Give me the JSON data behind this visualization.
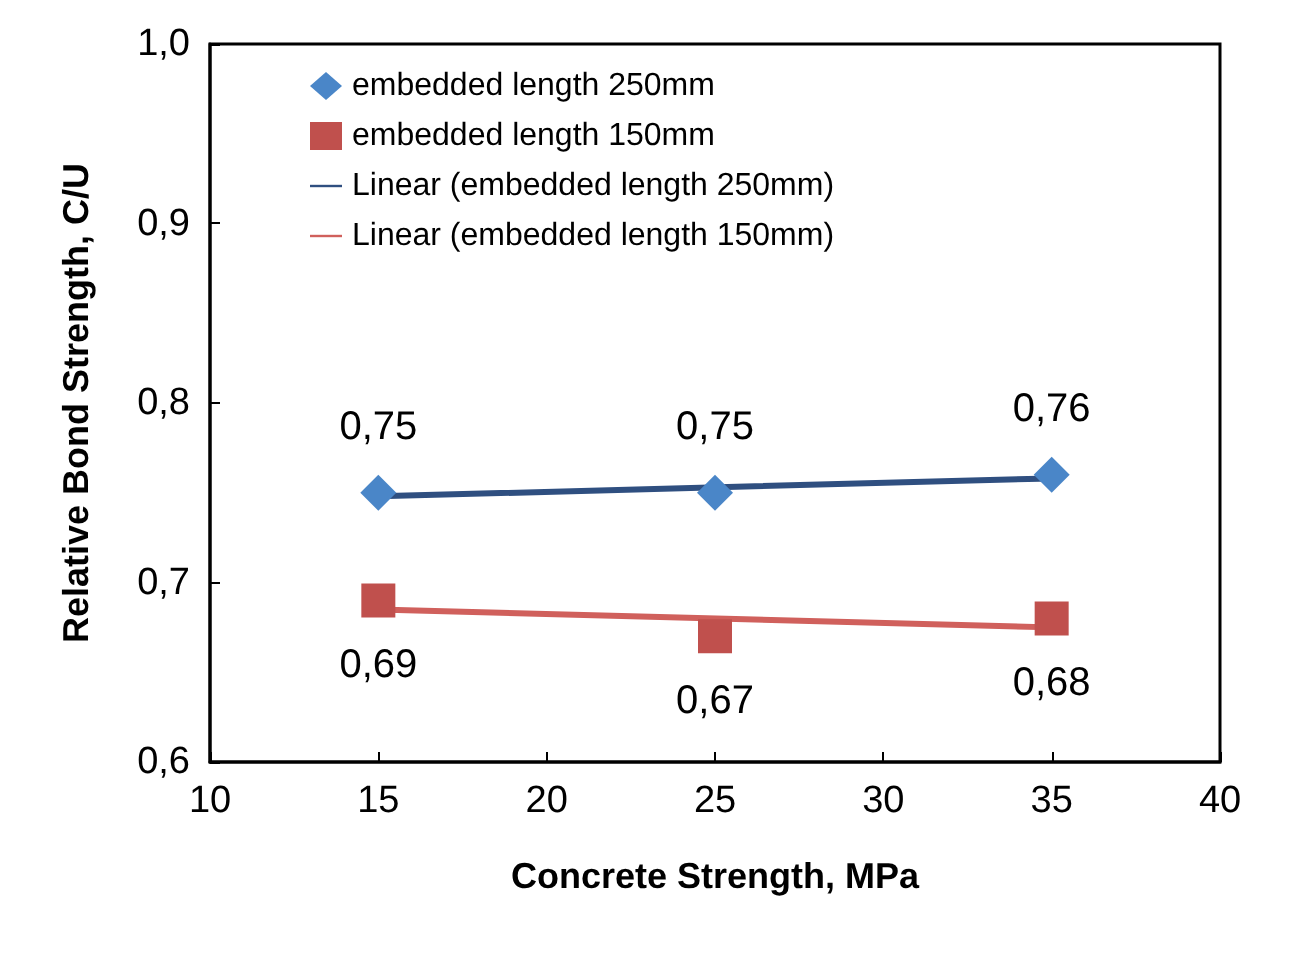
{
  "chart_data": {
    "type": "scatter",
    "xlabel": "Concrete Strength, MPa",
    "ylabel": "Relative Bond Strength, C/U",
    "xlim": [
      10,
      40
    ],
    "xticks": [
      10,
      15,
      20,
      25,
      30,
      35,
      40
    ],
    "ylim": [
      0.6,
      1.0
    ],
    "yticks": [
      {
        "value": 0.6,
        "label": "0,6"
      },
      {
        "value": 0.7,
        "label": "0,7"
      },
      {
        "value": 0.8,
        "label": "0,8"
      },
      {
        "value": 0.9,
        "label": "0,9"
      },
      {
        "value": 1.0,
        "label": "1,0"
      }
    ],
    "grid": false,
    "legend": "top",
    "series": [
      {
        "name": "embedded length 250mm",
        "marker": "diamond",
        "color": "#4a86c8",
        "x": [
          15,
          25,
          35
        ],
        "values": [
          0.75,
          0.75,
          0.76
        ],
        "value_labels": [
          "0,75",
          "0,75",
          "0,76"
        ]
      },
      {
        "name": "embedded length 150mm",
        "marker": "square",
        "color": "#c0504d",
        "x": [
          15,
          25,
          35
        ],
        "values": [
          0.69,
          0.67,
          0.68
        ],
        "value_labels": [
          "0,69",
          "0,67",
          "0,68"
        ]
      },
      {
        "name": "Linear (embedded length 250mm)",
        "type": "line",
        "marker": "none",
        "line_style": "solid",
        "color": "#2f4f80",
        "x": [
          15,
          35
        ],
        "values": [
          0.748,
          0.758
        ]
      },
      {
        "name": "Linear (embedded length 150mm)",
        "type": "line",
        "marker": "none",
        "line_style": "solid",
        "color": "#d0605c",
        "x": [
          15,
          35
        ],
        "values": [
          0.685,
          0.675
        ]
      }
    ]
  }
}
